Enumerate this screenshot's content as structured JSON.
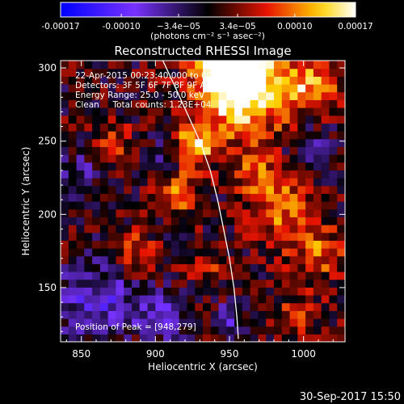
{
  "chart_data": {
    "type": "heatmap",
    "title": "Reconstructed RHESSI Image",
    "xlabel": "Heliocentric X (arcsec)",
    "ylabel": "Heliocentric Y (arcsec)",
    "xlim": [
      836,
      1028
    ],
    "ylim": [
      113,
      305
    ],
    "xticks": [
      850,
      900,
      950,
      1000
    ],
    "xtick_labels": [
      "850",
      "900",
      "950",
      "1000"
    ],
    "yticks": [
      150,
      200,
      250,
      300
    ],
    "ytick_labels": [
      "150",
      "200",
      "250",
      "300"
    ],
    "colorbar": {
      "min": -0.00017,
      "max": 0.00017,
      "ticks": [
        -0.00017,
        -0.0001,
        -3.4e-05,
        3.4e-05,
        0.0001,
        0.00017
      ],
      "tick_labels": [
        "-0.00017",
        "-0.00010",
        "−3.4e−05",
        "3.4e−05",
        "0.00010",
        "0.00017"
      ],
      "unit_label": "(photons cm⁻² s⁻¹ asec⁻²)",
      "colors": [
        "#0000ff",
        "#000000",
        "#ff0000",
        "#ffff00",
        "#ffffff"
      ]
    },
    "annotations": [
      "22-Apr-2015 00:23:40.000 to 00:33:40.000",
      "Detectors: 3F 5F 6F 7F 8F 9F AC D",
      "Energy Range: 25.0 - 50.0 keV",
      "Clean     Total counts: 1.23E+04",
      "Position of Peak = [948,279]"
    ],
    "limb_curve": [
      [
        905,
        305
      ],
      [
        912,
        290
      ],
      [
        921,
        270
      ],
      [
        930,
        250
      ],
      [
        937,
        230
      ],
      [
        942,
        210
      ],
      [
        946,
        190
      ],
      [
        950,
        170
      ],
      [
        953,
        150
      ],
      [
        955,
        130
      ],
      [
        956,
        115
      ]
    ],
    "hotspots": [
      {
        "x": 960,
        "y": 285,
        "r": 30,
        "v": 0.00017
      },
      {
        "x": 950,
        "y": 300,
        "r": 20,
        "v": 0.00015
      },
      {
        "x": 1005,
        "y": 290,
        "r": 18,
        "v": 0.0001
      },
      {
        "x": 927,
        "y": 247,
        "r": 14,
        "v": 0.00012
      },
      {
        "x": 915,
        "y": 215,
        "r": 16,
        "v": 8e-05
      },
      {
        "x": 985,
        "y": 205,
        "r": 22,
        "v": 9e-05
      },
      {
        "x": 1010,
        "y": 175,
        "r": 18,
        "v": 8e-05
      },
      {
        "x": 885,
        "y": 175,
        "r": 14,
        "v": 7e-05
      },
      {
        "x": 870,
        "y": 250,
        "r": 16,
        "v": 5e-05
      },
      {
        "x": 995,
        "y": 130,
        "r": 16,
        "v": 6e-05
      },
      {
        "x": 935,
        "y": 165,
        "r": 12,
        "v": 6e-05
      },
      {
        "x": 965,
        "y": 230,
        "r": 14,
        "v": 7e-05
      }
    ],
    "coldspots": [
      {
        "x": 860,
        "y": 140,
        "r": 26,
        "v": -9e-05
      },
      {
        "x": 905,
        "y": 130,
        "r": 14,
        "v": -0.0001
      },
      {
        "x": 850,
        "y": 230,
        "r": 14,
        "v": -6e-05
      },
      {
        "x": 905,
        "y": 240,
        "r": 12,
        "v": -5e-05
      },
      {
        "x": 1005,
        "y": 245,
        "r": 16,
        "v": -5e-05
      },
      {
        "x": 950,
        "y": 130,
        "r": 10,
        "v": -7e-05
      }
    ]
  },
  "footer": {
    "timestamp": "30-Sep-2017 15:50"
  }
}
